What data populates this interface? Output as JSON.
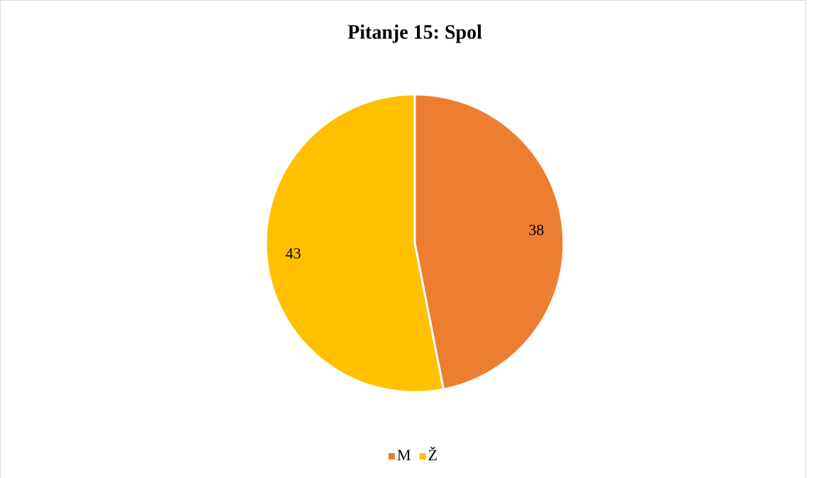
{
  "chart_data": {
    "type": "pie",
    "title": "Pitanje 15: Spol",
    "categories": [
      "M",
      "Ž"
    ],
    "values": [
      38,
      43
    ],
    "colors": [
      "#ED7D31",
      "#FFC000"
    ],
    "legend": "bottom"
  }
}
